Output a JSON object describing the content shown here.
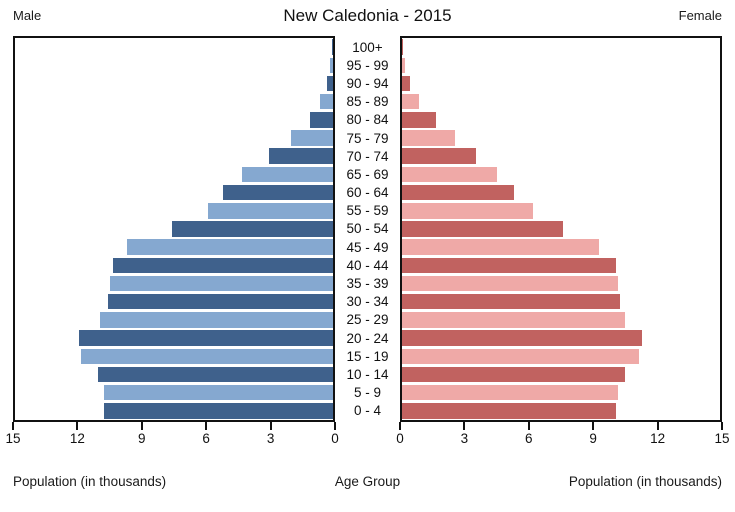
{
  "title": "New Caledonia - 2015",
  "left_header": "Male",
  "right_header": "Female",
  "axis": {
    "left_ticks": [
      "15",
      "12",
      "9",
      "6",
      "3",
      "0"
    ],
    "right_ticks": [
      "0",
      "3",
      "6",
      "9",
      "12",
      "15"
    ],
    "left_caption": "Population (in thousands)",
    "center_caption": "Age Group",
    "right_caption": "Population (in thousands)"
  },
  "colors": {
    "male_dark": "#3f618c",
    "male_light": "#85a8d0",
    "female_dark": "#c16260",
    "female_light": "#efa9a7",
    "axis_line": "#111111"
  },
  "chart_data": {
    "type": "bar",
    "subtype": "population-pyramid",
    "title": "New Caledonia - 2015",
    "unit": "thousands",
    "xlim": [
      0,
      15
    ],
    "xlabel_left": "Population (in thousands)",
    "xlabel_right": "Population (in thousands)",
    "ylabel": "Age Group",
    "grid": false,
    "order": "top_to_bottom_oldest_first",
    "age_groups": [
      "100+",
      "95 - 99",
      "90 - 94",
      "85 - 89",
      "80 - 84",
      "75 - 79",
      "70 - 74",
      "65 - 69",
      "60 - 64",
      "55 - 59",
      "50 - 54",
      "45 - 49",
      "40 - 44",
      "35 - 39",
      "30 - 34",
      "25 - 29",
      "20 - 24",
      "15 - 19",
      "10 - 14",
      "5 - 9",
      "0 - 4"
    ],
    "series": [
      {
        "name": "Male",
        "values": [
          0.05,
          0.15,
          0.3,
          0.6,
          1.1,
          2.0,
          3.0,
          4.3,
          5.2,
          5.9,
          7.6,
          9.7,
          10.4,
          10.5,
          10.6,
          11.0,
          12.0,
          11.9,
          11.1,
          10.8,
          10.8
        ]
      },
      {
        "name": "Female",
        "values": [
          0.05,
          0.15,
          0.4,
          0.8,
          1.6,
          2.5,
          3.5,
          4.5,
          5.3,
          6.2,
          7.6,
          9.3,
          10.1,
          10.2,
          10.3,
          10.5,
          11.3,
          11.2,
          10.5,
          10.2,
          10.1
        ]
      }
    ]
  }
}
